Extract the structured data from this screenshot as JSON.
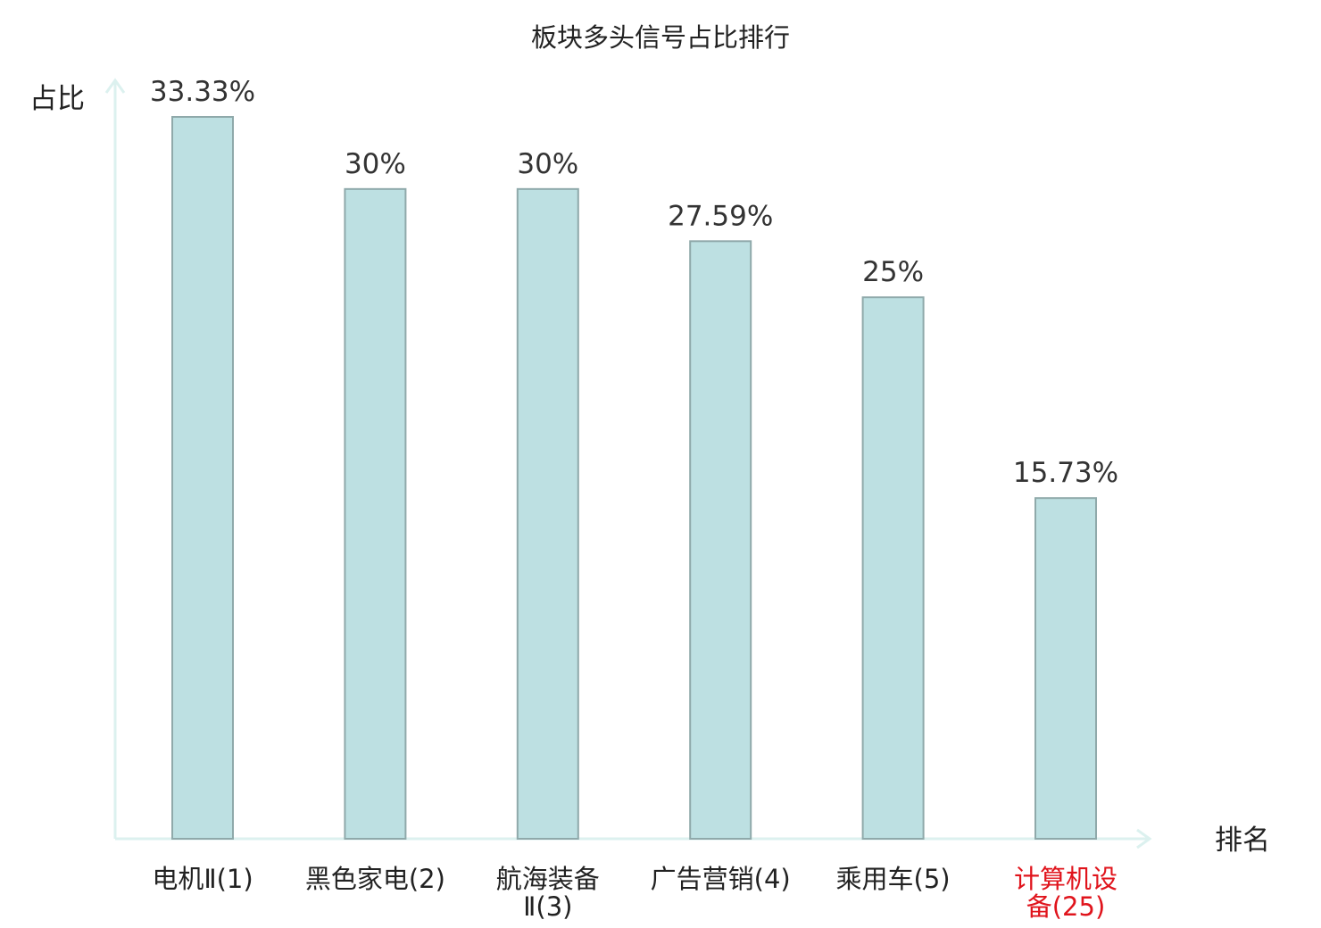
{
  "chart_data": {
    "type": "bar",
    "title": "板块多头信号占比排行",
    "xlabel": "排名",
    "ylabel": "占比",
    "categories": [
      {
        "lines": [
          "电机Ⅱ(1)"
        ],
        "highlight": false
      },
      {
        "lines": [
          "黑色家电(2)"
        ],
        "highlight": false
      },
      {
        "lines": [
          "航海装备",
          "Ⅱ(3)"
        ],
        "highlight": false
      },
      {
        "lines": [
          "广告营销(4)"
        ],
        "highlight": false
      },
      {
        "lines": [
          "乘用车(5)"
        ],
        "highlight": false
      },
      {
        "lines": [
          "计算机设",
          "备(25)"
        ],
        "highlight": true
      }
    ],
    "values": [
      33.33,
      30,
      30,
      27.59,
      25,
      15.73
    ],
    "value_labels": [
      "33.33%",
      "30%",
      "30%",
      "27.59%",
      "25%",
      "15.73%"
    ],
    "ylim": [
      0,
      33.33
    ],
    "grid": false,
    "legend": "none"
  },
  "colors": {
    "bar_fill": "#bde0e2",
    "bar_stroke": "#8fa9aa",
    "axis": "#dcf1ef",
    "text": "#222222",
    "highlight_text": "#e0141c"
  }
}
